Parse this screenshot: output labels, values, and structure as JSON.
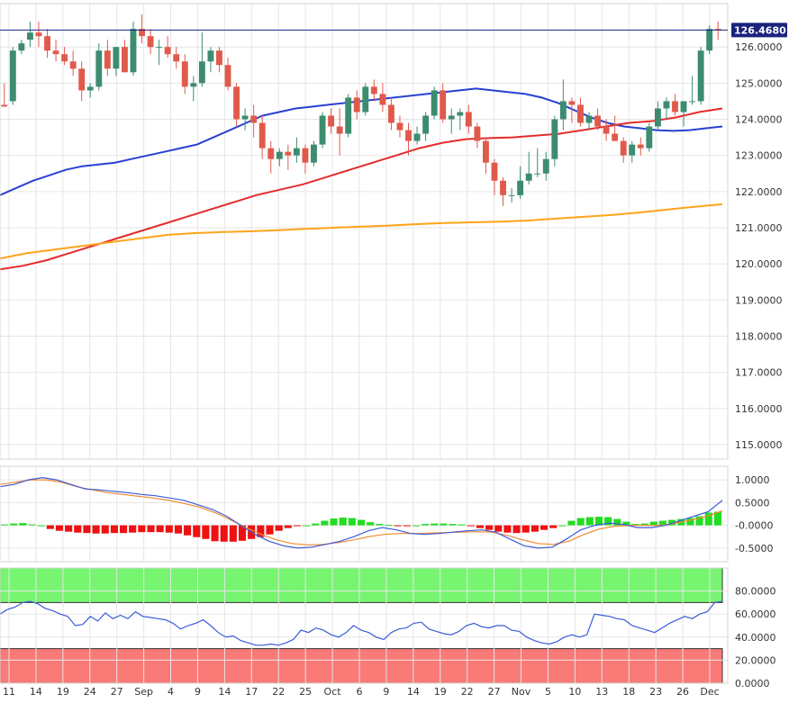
{
  "chart_data": [
    {
      "type": "candlestick",
      "title": "",
      "last_price_label": "126.4680",
      "ylim": [
        114.6,
        127.2
      ],
      "yticks": [
        115,
        116,
        117,
        118,
        119,
        120,
        121,
        122,
        123,
        124,
        125,
        126
      ],
      "ytick_labels": [
        "115.0000",
        "116.0000",
        "117.0000",
        "118.0000",
        "119.0000",
        "120.0000",
        "121.0000",
        "122.0000",
        "123.0000",
        "124.0000",
        "125.0000",
        "126.0000"
      ],
      "last_price": 126.468,
      "colors": {
        "up": "#3d8c70",
        "down": "#e05a4c",
        "last_line": "#1a237e",
        "label_bg": "#1a237e"
      },
      "candles": [
        [
          124.4,
          125.0,
          124.35,
          124.35
        ],
        [
          124.5,
          126.0,
          124.4,
          125.9
        ],
        [
          125.9,
          126.2,
          125.8,
          126.1
        ],
        [
          126.2,
          126.7,
          126.0,
          126.4
        ],
        [
          126.4,
          126.7,
          126.0,
          126.3
        ],
        [
          126.3,
          126.5,
          125.7,
          125.9
        ],
        [
          125.9,
          126.2,
          125.6,
          125.8
        ],
        [
          125.8,
          126.0,
          125.5,
          125.6
        ],
        [
          125.6,
          125.9,
          125.2,
          125.4
        ],
        [
          125.4,
          125.6,
          124.5,
          124.8
        ],
        [
          124.8,
          125.0,
          124.6,
          124.9
        ],
        [
          124.9,
          126.1,
          124.8,
          125.9
        ],
        [
          125.9,
          126.2,
          125.2,
          125.4
        ],
        [
          125.4,
          126.0,
          125.2,
          126.0
        ],
        [
          126.0,
          126.2,
          125.3,
          125.3
        ],
        [
          125.3,
          126.7,
          125.2,
          126.5
        ],
        [
          126.5,
          126.9,
          126.1,
          126.3
        ],
        [
          126.3,
          126.5,
          125.8,
          126.0
        ],
        [
          126.0,
          126.2,
          125.5,
          126.0
        ],
        [
          126.0,
          126.3,
          125.7,
          125.8
        ],
        [
          125.8,
          126.0,
          125.4,
          125.6
        ],
        [
          125.6,
          125.8,
          124.7,
          124.9
        ],
        [
          124.9,
          125.2,
          124.5,
          125.0
        ],
        [
          125.0,
          126.4,
          124.9,
          125.6
        ],
        [
          125.6,
          126.0,
          125.3,
          125.9
        ],
        [
          125.9,
          126.0,
          125.3,
          125.5
        ],
        [
          125.5,
          125.7,
          124.8,
          124.9
        ],
        [
          124.9,
          125.0,
          123.8,
          124.0
        ],
        [
          124.0,
          124.3,
          123.7,
          124.1
        ],
        [
          124.1,
          124.4,
          123.5,
          123.9
        ],
        [
          123.9,
          124.1,
          122.9,
          123.2
        ],
        [
          123.2,
          123.4,
          122.5,
          122.9
        ],
        [
          122.9,
          123.2,
          122.7,
          123.1
        ],
        [
          123.1,
          123.3,
          122.6,
          123.0
        ],
        [
          123.0,
          123.5,
          122.8,
          123.2
        ],
        [
          123.2,
          123.3,
          122.5,
          122.8
        ],
        [
          122.8,
          123.4,
          122.7,
          123.3
        ],
        [
          123.3,
          124.2,
          123.2,
          124.1
        ],
        [
          124.1,
          124.3,
          123.6,
          123.8
        ],
        [
          123.8,
          124.3,
          123.0,
          123.6
        ],
        [
          123.6,
          124.7,
          123.5,
          124.6
        ],
        [
          124.6,
          124.8,
          124.0,
          124.2
        ],
        [
          124.2,
          125.0,
          124.1,
          124.9
        ],
        [
          124.9,
          125.1,
          124.5,
          124.7
        ],
        [
          124.7,
          125.0,
          124.2,
          124.4
        ],
        [
          124.4,
          124.6,
          123.7,
          123.9
        ],
        [
          123.9,
          124.1,
          123.5,
          123.7
        ],
        [
          123.7,
          123.9,
          123.0,
          123.4
        ],
        [
          123.4,
          123.8,
          123.3,
          123.6
        ],
        [
          123.6,
          124.2,
          123.4,
          124.1
        ],
        [
          124.1,
          124.9,
          124.0,
          124.8
        ],
        [
          124.8,
          125.0,
          123.9,
          124.0
        ],
        [
          124.0,
          124.3,
          123.6,
          124.1
        ],
        [
          124.1,
          124.3,
          123.7,
          124.2
        ],
        [
          124.2,
          124.4,
          123.6,
          123.8
        ],
        [
          123.8,
          123.9,
          123.2,
          123.4
        ],
        [
          123.4,
          123.5,
          122.5,
          122.8
        ],
        [
          122.8,
          122.9,
          121.9,
          122.3
        ],
        [
          122.3,
          122.4,
          121.6,
          121.9
        ],
        [
          121.9,
          122.1,
          121.7,
          121.9
        ],
        [
          121.9,
          122.7,
          121.8,
          122.3
        ],
        [
          122.3,
          123.1,
          122.2,
          122.5
        ],
        [
          122.5,
          123.2,
          122.4,
          122.5
        ],
        [
          122.5,
          123.1,
          122.3,
          122.9
        ],
        [
          122.9,
          124.1,
          122.7,
          124.0
        ],
        [
          124.0,
          125.1,
          123.7,
          124.5
        ],
        [
          124.5,
          124.6,
          123.9,
          124.4
        ],
        [
          124.4,
          124.6,
          123.8,
          123.9
        ],
        [
          123.9,
          124.2,
          123.7,
          124.1
        ],
        [
          124.1,
          124.3,
          123.7,
          123.8
        ],
        [
          123.8,
          124.0,
          123.4,
          123.6
        ],
        [
          123.6,
          124.1,
          123.4,
          123.4
        ],
        [
          123.4,
          123.5,
          122.8,
          123.0
        ],
        [
          123.0,
          123.4,
          122.8,
          123.3
        ],
        [
          123.3,
          123.5,
          123.0,
          123.2
        ],
        [
          123.2,
          123.9,
          123.1,
          123.8
        ],
        [
          123.8,
          124.5,
          123.7,
          124.3
        ],
        [
          124.3,
          124.6,
          124.0,
          124.5
        ],
        [
          124.5,
          124.7,
          124.1,
          124.2
        ],
        [
          124.2,
          124.4,
          123.8,
          124.5
        ],
        [
          124.5,
          125.2,
          124.4,
          124.5
        ],
        [
          124.5,
          126.0,
          124.4,
          125.9
        ],
        [
          125.9,
          126.6,
          125.8,
          126.5
        ],
        [
          126.5,
          126.7,
          126.2,
          126.468
        ]
      ],
      "series": [
        {
          "name": "",
          "color": "#2940d3",
          "values": [
            121.9,
            122.1,
            122.3,
            122.45,
            122.6,
            122.7,
            122.75,
            122.8,
            122.9,
            123.0,
            123.1,
            123.2,
            123.3,
            123.5,
            123.7,
            123.9,
            124.1,
            124.2,
            124.3,
            124.35,
            124.4,
            124.45,
            124.5,
            124.55,
            124.6,
            124.65,
            124.7,
            124.75,
            124.8,
            124.85,
            124.8,
            124.75,
            124.7,
            124.6,
            124.45,
            124.25,
            124.05,
            123.9,
            123.8,
            123.75,
            123.7,
            123.68,
            123.7,
            123.75,
            123.8
          ]
        },
        {
          "name": "",
          "color": "#e52b2b",
          "values": [
            119.85,
            119.95,
            120.1,
            120.3,
            120.5,
            120.7,
            120.9,
            121.1,
            121.3,
            121.5,
            121.7,
            121.9,
            122.05,
            122.2,
            122.4,
            122.6,
            122.8,
            123.0,
            123.2,
            123.35,
            123.45,
            123.48,
            123.5,
            123.55,
            123.6,
            123.7,
            123.8,
            123.9,
            123.95,
            124.05,
            124.2,
            124.3
          ]
        },
        {
          "name": "",
          "color": "#ffa31a",
          "values": [
            120.15,
            120.3,
            120.4,
            120.5,
            120.6,
            120.7,
            120.8,
            120.85,
            120.88,
            120.9,
            120.93,
            120.97,
            121.0,
            121.03,
            121.06,
            121.1,
            121.13,
            121.15,
            121.17,
            121.2,
            121.25,
            121.3,
            121.35,
            121.42,
            121.5,
            121.58,
            121.65
          ]
        }
      ]
    },
    {
      "type": "macd",
      "ylim": [
        -0.8,
        1.3
      ],
      "yticks": [
        1.0,
        0.5,
        0.0,
        -0.5
      ],
      "ytick_labels": [
        "1.0000",
        "0.5000",
        "-0.0000",
        "-0.5000"
      ],
      "macd": [
        0.85,
        0.9,
        1.0,
        1.05,
        1.0,
        0.9,
        0.8,
        0.78,
        0.75,
        0.72,
        0.68,
        0.65,
        0.6,
        0.55,
        0.45,
        0.35,
        0.2,
        0.0,
        -0.2,
        -0.35,
        -0.45,
        -0.5,
        -0.48,
        -0.42,
        -0.35,
        -0.25,
        -0.12,
        -0.05,
        -0.1,
        -0.18,
        -0.2,
        -0.18,
        -0.15,
        -0.12,
        -0.1,
        -0.15,
        -0.3,
        -0.45,
        -0.5,
        -0.48,
        -0.3,
        -0.1,
        0.0,
        0.05,
        0.02,
        -0.05,
        -0.05,
        0.0,
        0.1,
        0.2,
        0.3,
        0.55
      ],
      "signal": [
        0.9,
        0.95,
        1.0,
        1.0,
        0.95,
        0.85,
        0.78,
        0.72,
        0.68,
        0.64,
        0.6,
        0.55,
        0.48,
        0.4,
        0.28,
        0.12,
        -0.05,
        -0.2,
        -0.32,
        -0.4,
        -0.43,
        -0.42,
        -0.38,
        -0.32,
        -0.25,
        -0.2,
        -0.18,
        -0.18,
        -0.17,
        -0.16,
        -0.15,
        -0.14,
        -0.15,
        -0.22,
        -0.32,
        -0.4,
        -0.42,
        -0.35,
        -0.2,
        -0.08,
        -0.02,
        0.0,
        0.0,
        0.0,
        0.05,
        0.12,
        0.2,
        0.32
      ],
      "histogram": [
        0.02,
        0.04,
        0.05,
        0.02,
        0.0,
        -0.08,
        -0.12,
        -0.14,
        -0.16,
        -0.17,
        -0.18,
        -0.18,
        -0.17,
        -0.17,
        -0.16,
        -0.15,
        -0.15,
        -0.15,
        -0.16,
        -0.18,
        -0.22,
        -0.26,
        -0.3,
        -0.35,
        -0.36,
        -0.36,
        -0.34,
        -0.3,
        -0.26,
        -0.2,
        -0.12,
        -0.06,
        -0.02,
        0.0,
        0.04,
        0.1,
        0.15,
        0.17,
        0.16,
        0.12,
        0.07,
        0.03,
        0.01,
        -0.02,
        -0.02,
        0.0,
        0.03,
        0.04,
        0.04,
        0.03,
        0.02,
        -0.02,
        -0.06,
        -0.1,
        -0.14,
        -0.16,
        -0.17,
        -0.16,
        -0.14,
        -0.1,
        -0.06,
        0.0,
        0.1,
        0.16,
        0.18,
        0.19,
        0.18,
        0.14,
        0.08,
        0.03,
        0.04,
        0.08,
        0.1,
        0.12,
        0.14,
        0.16,
        0.2,
        0.28,
        0.3
      ],
      "colors": {
        "macd": "#3a5bd9",
        "signal": "#f08a30",
        "hist_pos": "#22dd22",
        "hist_neg": "#ee1111"
      }
    },
    {
      "type": "rsi",
      "ylim": [
        0,
        100
      ],
      "yticks": [
        80,
        60,
        40,
        20,
        0
      ],
      "ytick_labels": [
        "80.0000",
        "60.0000",
        "40.0000",
        "20.0000",
        "0.0000"
      ],
      "overbought": 70,
      "oversold": 30,
      "values": [
        60,
        64,
        66,
        70,
        71,
        69,
        65,
        63,
        60,
        58,
        50,
        51,
        58,
        54,
        61,
        56,
        59,
        56,
        62,
        58,
        57,
        56,
        55,
        52,
        47,
        50,
        52,
        55,
        50,
        44,
        40,
        41,
        37,
        35,
        33,
        33,
        34,
        33,
        35,
        38,
        46,
        44,
        48,
        46,
        42,
        40,
        44,
        50,
        46,
        44,
        40,
        38,
        44,
        47,
        48,
        52,
        53,
        47,
        45,
        43,
        42,
        45,
        50,
        52,
        49,
        48,
        50,
        50,
        46,
        45,
        40,
        37,
        35,
        34,
        36,
        40,
        42,
        40,
        42,
        60,
        59,
        58,
        56,
        55,
        50,
        48,
        46,
        44,
        48,
        52,
        55,
        58,
        56,
        60,
        62,
        70,
        71
      ]
    }
  ],
  "x_axis": {
    "ticks": [
      "11",
      "14",
      "19",
      "24",
      "27",
      "Sep",
      "4",
      "9",
      "14",
      "17",
      "22",
      "25",
      "Oct",
      "6",
      "9",
      "14",
      "19",
      "22",
      "27",
      "Nov",
      "5",
      "10",
      "13",
      "18",
      "23",
      "26",
      "Dec"
    ]
  }
}
